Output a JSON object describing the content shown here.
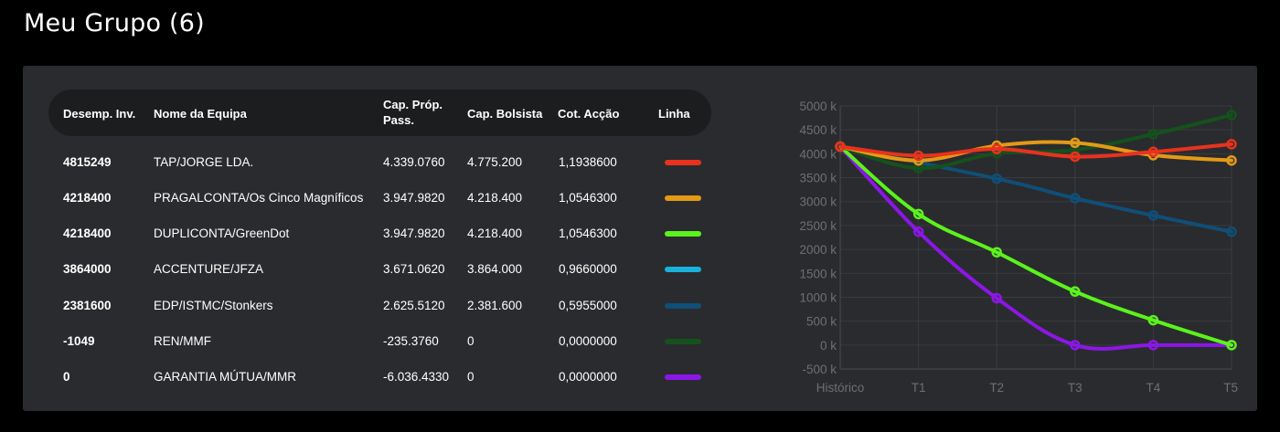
{
  "page": {
    "title": "Meu Grupo (6)"
  },
  "table": {
    "headers": {
      "desemp": "Desemp. Inv.",
      "nome": "Nome da Equipa",
      "cap_prop_1": "Cap. Próp.",
      "cap_prop_2": "Pass.",
      "cap_bolsista": "Cap. Bolsista",
      "cot": "Cot. Acção",
      "linha": "Linha"
    },
    "rows": [
      {
        "desemp": "4815249",
        "nome": "TAP/JORGE LDA.",
        "cap_prop": "4.339.0760",
        "cap_bolsista": "4.775.200",
        "cot": "1,1938600",
        "color": "#e8321e"
      },
      {
        "desemp": "4218400",
        "nome": "PRAGALCONTA/Os Cinco Magníficos",
        "cap_prop": "3.947.9820",
        "cap_bolsista": "4.218.400",
        "cot": "1,0546300",
        "color": "#e39a16"
      },
      {
        "desemp": "4218400",
        "nome": "DUPLICONTA/GreenDot",
        "cap_prop": "3.947.9820",
        "cap_bolsista": "4.218.400",
        "cot": "1,0546300",
        "color": "#5cf21d"
      },
      {
        "desemp": "3864000",
        "nome": "ACCENTURE/JFZA",
        "cap_prop": "3.671.0620",
        "cap_bolsista": "3.864.000",
        "cot": "0,9660000",
        "color": "#1ab2dc"
      },
      {
        "desemp": "2381600",
        "nome": "EDP/ISTMC/Stonkers",
        "cap_prop": "2.625.5120",
        "cap_bolsista": "2.381.600",
        "cot": "0,5955000",
        "color": "#0f4f78"
      },
      {
        "desemp": "-1049",
        "nome": "REN/MMF",
        "cap_prop": "-235.3760",
        "cap_bolsista": "0",
        "cot": "0,0000000",
        "color": "#14521c"
      },
      {
        "desemp": "0",
        "nome": "GARANTIA MÚTUA/MMR",
        "cap_prop": "-6.036.4330",
        "cap_bolsista": "0",
        "cot": "0,0000000",
        "color": "#8b17e6"
      }
    ]
  },
  "chart_data": {
    "type": "line",
    "categories": [
      "Histórico",
      "T1",
      "T2",
      "T3",
      "T4",
      "T5"
    ],
    "y_tick_labels": [
      "5000 k",
      "4500 k",
      "4000 k",
      "3500 k",
      "3000 k",
      "2500 k",
      "2000 k",
      "1500 k",
      "1000 k",
      "500 k",
      "0 k",
      "-500 k"
    ],
    "ylim": [
      -500,
      5000
    ],
    "y_unit": "k",
    "grid": true,
    "series": [
      {
        "color": "#8b17e6",
        "values": [
          4150,
          2370,
          980,
          0,
          0,
          0
        ]
      },
      {
        "color": "#5cf21d",
        "values": [
          4150,
          2740,
          1940,
          1120,
          520,
          0
        ]
      },
      {
        "color": "#0f4f78",
        "values": [
          4150,
          null,
          3480,
          3070,
          2710,
          2370
        ]
      },
      {
        "color": "#14521c",
        "values": [
          4150,
          3700,
          4010,
          4080,
          4410,
          4810
        ]
      },
      {
        "color": "#e39a16",
        "values": [
          4150,
          3860,
          4170,
          4230,
          3970,
          3860
        ]
      },
      {
        "color": "#e8321e",
        "values": [
          4150,
          3960,
          4100,
          3940,
          4040,
          4200
        ]
      }
    ]
  }
}
